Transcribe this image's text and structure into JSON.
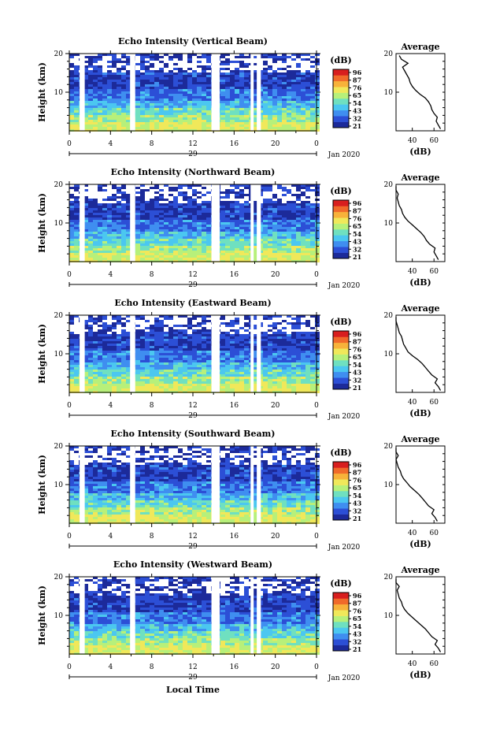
{
  "chart_data": {
    "type": "heatmap",
    "colorbar": {
      "label": "(dB)",
      "ticks": [
        "96",
        "87",
        "76",
        "65",
        "54",
        "43",
        "32",
        "21"
      ],
      "colors": [
        "#1c2a9a",
        "#2c4fd6",
        "#3f8ef0",
        "#4bc7f0",
        "#6fe0c0",
        "#b7f07a",
        "#f0e85a",
        "#f7b23a",
        "#f06a2a",
        "#d81e1e"
      ]
    },
    "xaxis": {
      "ticks": [
        "0",
        "4",
        "8",
        "12",
        "16",
        "20",
        "0"
      ],
      "day_label": "29",
      "date_label": "Jan 2020",
      "xlabel": "Local Time"
    },
    "yaxis": {
      "label": "Height (km)",
      "ticks": [
        "20",
        "10"
      ],
      "range": [
        0,
        20
      ]
    },
    "profile_axis": {
      "title": "Average",
      "xlabel": "(dB)",
      "ticks": [
        "40",
        "60"
      ],
      "range": [
        25,
        70
      ]
    },
    "panels": [
      {
        "title": "Echo Intensity (Vertical Beam)",
        "day_label": "29",
        "profile_ticks": [
          "40",
          "60"
        ],
        "profile": [
          [
            66,
            0.5
          ],
          [
            64,
            1.5
          ],
          [
            62,
            2.5
          ],
          [
            63,
            3.5
          ],
          [
            60,
            4.5
          ],
          [
            58,
            5.5
          ],
          [
            57,
            6.5
          ],
          [
            55,
            7.5
          ],
          [
            52,
            8.5
          ],
          [
            47,
            9.5
          ],
          [
            43,
            10.5
          ],
          [
            40,
            11.5
          ],
          [
            38,
            12.5
          ],
          [
            37,
            13.5
          ],
          [
            35,
            14.5
          ],
          [
            33,
            15.5
          ],
          [
            31,
            16.5
          ],
          [
            36,
            17.5
          ],
          [
            30,
            18.5
          ],
          [
            28,
            19.5
          ]
        ]
      },
      {
        "title": "Echo Intensity (Northward Beam)",
        "day_label": "29",
        "profile_ticks": [
          "40",
          "60"
        ],
        "profile": [
          [
            64,
            0.5
          ],
          [
            62,
            1.5
          ],
          [
            60,
            2.5
          ],
          [
            61,
            3.5
          ],
          [
            56,
            4.5
          ],
          [
            53,
            5.5
          ],
          [
            51,
            6.5
          ],
          [
            48,
            7.5
          ],
          [
            44,
            8.5
          ],
          [
            40,
            9.5
          ],
          [
            36,
            10.5
          ],
          [
            33,
            11.5
          ],
          [
            31,
            12.5
          ],
          [
            30,
            13.5
          ],
          [
            28,
            14.5
          ],
          [
            27,
            15.5
          ],
          [
            26,
            16.5
          ],
          [
            27,
            17.5
          ],
          [
            25,
            18.5
          ],
          [
            25,
            19.5
          ]
        ]
      },
      {
        "title": "Echo Intensity (Eastward Beam)",
        "day_label": "29",
        "profile_ticks": [
          "40",
          "60"
        ],
        "profile": [
          [
            66,
            0.5
          ],
          [
            64,
            1.5
          ],
          [
            61,
            2.5
          ],
          [
            63,
            3.5
          ],
          [
            58,
            4.5
          ],
          [
            55,
            5.5
          ],
          [
            52,
            6.5
          ],
          [
            49,
            7.5
          ],
          [
            45,
            8.5
          ],
          [
            40,
            9.5
          ],
          [
            36,
            10.5
          ],
          [
            34,
            11.5
          ],
          [
            32,
            12.5
          ],
          [
            31,
            13.5
          ],
          [
            30,
            14.5
          ],
          [
            28,
            15.5
          ],
          [
            27,
            16.5
          ],
          [
            26,
            17.5
          ],
          [
            25,
            18.5
          ],
          [
            25,
            19.5
          ]
        ]
      },
      {
        "title": "Echo Intensity (Southward Beam)",
        "day_label": "29",
        "profile_ticks": [
          "40",
          "60"
        ],
        "profile": [
          [
            63,
            0.5
          ],
          [
            61,
            1.5
          ],
          [
            58,
            2.5
          ],
          [
            60,
            3.5
          ],
          [
            55,
            4.5
          ],
          [
            52,
            5.5
          ],
          [
            49,
            6.5
          ],
          [
            46,
            7.5
          ],
          [
            42,
            8.5
          ],
          [
            38,
            9.5
          ],
          [
            35,
            10.5
          ],
          [
            32,
            11.5
          ],
          [
            30,
            12.5
          ],
          [
            29,
            13.5
          ],
          [
            27,
            14.5
          ],
          [
            26,
            15.5
          ],
          [
            25,
            16.5
          ],
          [
            27,
            17.5
          ],
          [
            25,
            18.5
          ],
          [
            25,
            19.5
          ]
        ]
      },
      {
        "title": "Echo Intensity (Westward Beam)",
        "day_label": "29",
        "profile_ticks": [
          "40",
          "60"
        ],
        "profile": [
          [
            66,
            0.5
          ],
          [
            64,
            1.5
          ],
          [
            61,
            2.5
          ],
          [
            63,
            3.5
          ],
          [
            58,
            4.5
          ],
          [
            55,
            5.5
          ],
          [
            52,
            6.5
          ],
          [
            48,
            7.5
          ],
          [
            44,
            8.5
          ],
          [
            40,
            9.5
          ],
          [
            36,
            10.5
          ],
          [
            33,
            11.5
          ],
          [
            31,
            12.5
          ],
          [
            30,
            13.5
          ],
          [
            28,
            14.5
          ],
          [
            27,
            15.5
          ],
          [
            26,
            16.5
          ],
          [
            28,
            17.5
          ],
          [
            25,
            18.5
          ],
          [
            25,
            19.5
          ]
        ]
      }
    ]
  }
}
